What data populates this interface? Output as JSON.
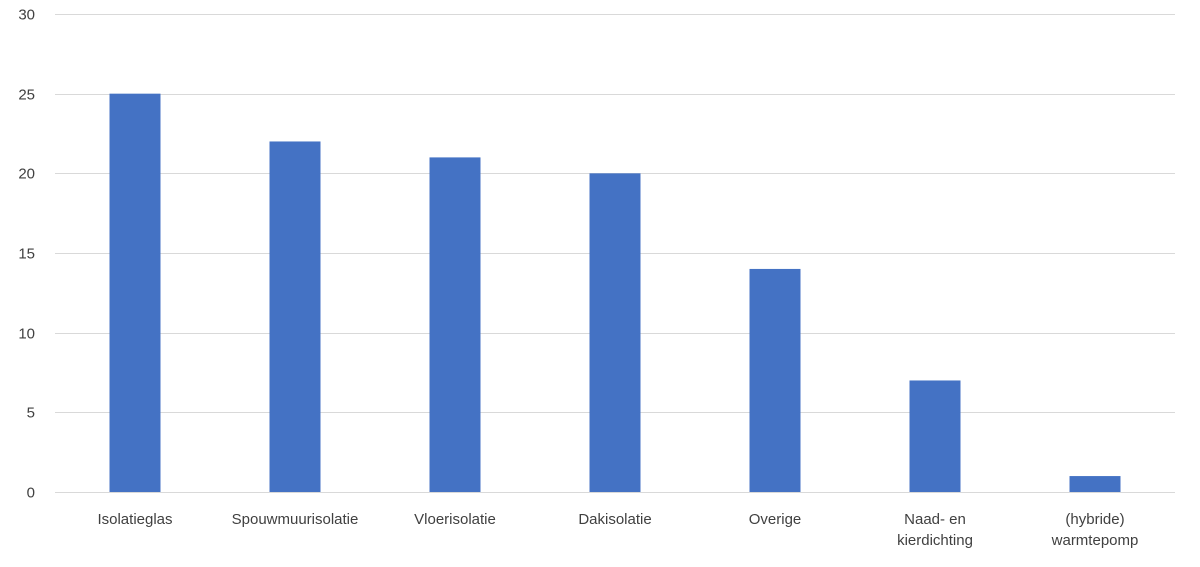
{
  "chart_data": {
    "type": "bar",
    "categories": [
      [
        "Isolatieglas"
      ],
      [
        "Spouwmuurisolatie"
      ],
      [
        "Vloerisolatie"
      ],
      [
        "Dakisolatie"
      ],
      [
        "Overige"
      ],
      [
        "Naad- en",
        "kierdichting"
      ],
      [
        "(hybride)",
        "warmtepomp"
      ]
    ],
    "series": [
      {
        "values": [
          25,
          22,
          21,
          20,
          14,
          7,
          1
        ]
      }
    ],
    "ylim": [
      0,
      30
    ],
    "yticks": [
      0,
      5,
      10,
      15,
      20,
      25,
      30
    ],
    "grid": true,
    "legend": "none",
    "colors": {
      "bar": "#4472C4",
      "grid": "#d9d9d9",
      "text": "#404040"
    }
  }
}
